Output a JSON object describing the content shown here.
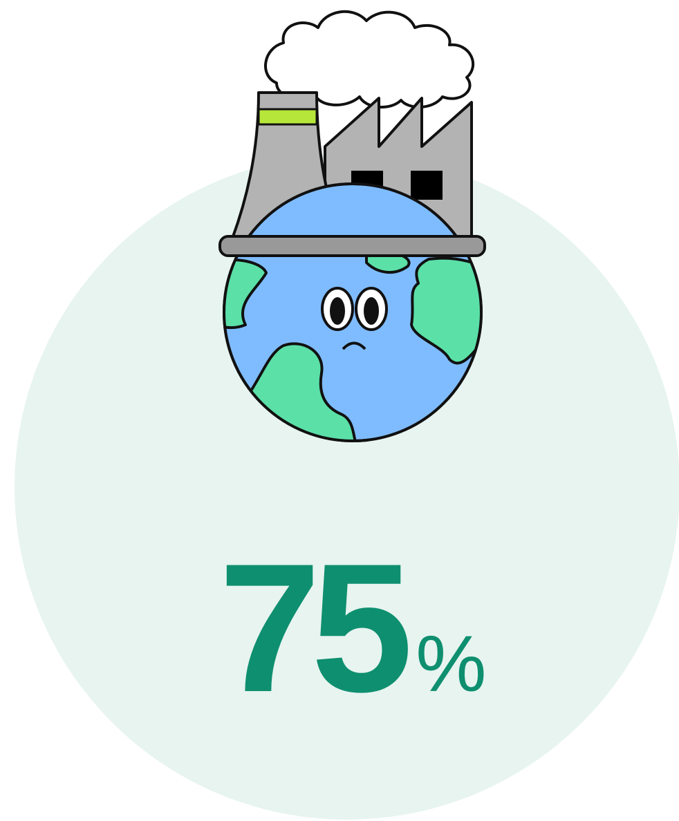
{
  "stat": {
    "value": 75,
    "unit": "%"
  }
}
